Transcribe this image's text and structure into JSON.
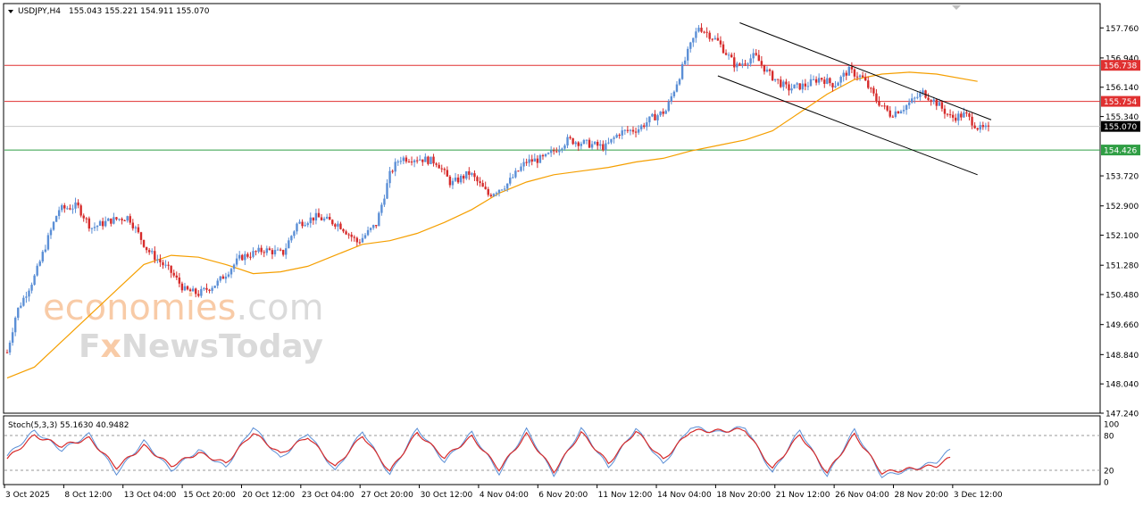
{
  "header": {
    "symbol": "USDJPY,H4",
    "ohlc": "155.043 155.221 154.911 155.070"
  },
  "watermark": {
    "line1_a": "econo",
    "line1_b": "mies",
    "line1_c": ".com",
    "line2_a": "F",
    "line2_b": "x",
    "line2_c": "NewsToday"
  },
  "price_axis": {
    "ticks": [
      "157.760",
      "156.940",
      "156.140",
      "155.340",
      "153.720",
      "152.900",
      "152.100",
      "151.280",
      "150.480",
      "149.660",
      "148.840",
      "148.040",
      "147.240"
    ]
  },
  "levels": [
    {
      "label": "156.738",
      "value": 156.738,
      "color": "#e03131"
    },
    {
      "label": "155.754",
      "value": 155.754,
      "color": "#e03131"
    },
    {
      "label": "155.070",
      "value": 155.07,
      "color": "#000000"
    },
    {
      "label": "154.426",
      "value": 154.426,
      "color": "#2f9e44"
    }
  ],
  "time_axis": {
    "labels": [
      "3 Oct 2025",
      "8 Oct 12:00",
      "13 Oct 04:00",
      "15 Oct 20:00",
      "20 Oct 12:00",
      "23 Oct 04:00",
      "27 Oct 20:00",
      "30 Oct 12:00",
      "4 Nov 04:00",
      "6 Nov 20:00",
      "11 Nov 12:00",
      "14 Nov 04:00",
      "18 Nov 20:00",
      "21 Nov 12:00",
      "26 Nov 04:00",
      "28 Nov 20:00",
      "3 Dec 12:00"
    ]
  },
  "stoch": {
    "title": "Stoch(5,3,3) 55.1630 40.9482",
    "ticks": [
      "100",
      "80",
      "20",
      "0"
    ]
  },
  "colors": {
    "bull": "#5b8fd6",
    "bear": "#d62b2b",
    "ma": "#f59f00",
    "stoch_main": "#5b8fd6",
    "stoch_signal": "#d62b2b"
  },
  "chart_data": {
    "type": "candlestick",
    "symbol": "USDJPY",
    "timeframe": "H4",
    "ylim": [
      147.24,
      158.4
    ],
    "ma_series": [
      [
        0,
        148.2
      ],
      [
        10,
        148.5
      ],
      [
        20,
        149.2
      ],
      [
        30,
        149.9
      ],
      [
        40,
        150.6
      ],
      [
        50,
        151.3
      ],
      [
        60,
        151.55
      ],
      [
        70,
        151.5
      ],
      [
        80,
        151.3
      ],
      [
        90,
        151.05
      ],
      [
        100,
        151.1
      ],
      [
        110,
        151.25
      ],
      [
        120,
        151.55
      ],
      [
        130,
        151.85
      ],
      [
        140,
        151.95
      ],
      [
        150,
        152.15
      ],
      [
        160,
        152.45
      ],
      [
        170,
        152.8
      ],
      [
        180,
        153.25
      ],
      [
        190,
        153.55
      ],
      [
        200,
        153.75
      ],
      [
        210,
        153.85
      ],
      [
        220,
        153.95
      ],
      [
        230,
        154.1
      ],
      [
        240,
        154.2
      ],
      [
        250,
        154.4
      ],
      [
        260,
        154.55
      ],
      [
        270,
        154.7
      ],
      [
        280,
        154.95
      ],
      [
        290,
        155.45
      ],
      [
        300,
        155.95
      ],
      [
        310,
        156.35
      ],
      [
        320,
        156.5
      ],
      [
        330,
        156.55
      ],
      [
        340,
        156.5
      ],
      [
        355,
        156.3
      ]
    ],
    "channel": {
      "upper": [
        [
          268,
          157.9
        ],
        [
          360,
          155.25
        ]
      ],
      "lower": [
        [
          260,
          156.45
        ],
        [
          355,
          153.75
        ]
      ]
    },
    "stoch_main": [
      [
        0,
        45
      ],
      [
        10,
        88
      ],
      [
        20,
        55
      ],
      [
        30,
        82
      ],
      [
        40,
        15
      ],
      [
        50,
        70
      ],
      [
        60,
        20
      ],
      [
        70,
        55
      ],
      [
        80,
        25
      ],
      [
        90,
        95
      ],
      [
        100,
        40
      ],
      [
        110,
        85
      ],
      [
        120,
        18
      ],
      [
        130,
        88
      ],
      [
        140,
        12
      ],
      [
        150,
        92
      ],
      [
        160,
        35
      ],
      [
        170,
        85
      ],
      [
        180,
        15
      ],
      [
        190,
        90
      ],
      [
        200,
        12
      ],
      [
        210,
        92
      ],
      [
        220,
        25
      ],
      [
        230,
        93
      ],
      [
        240,
        30
      ],
      [
        250,
        95
      ],
      [
        260,
        85
      ],
      [
        270,
        95
      ],
      [
        280,
        15
      ],
      [
        290,
        90
      ],
      [
        300,
        10
      ],
      [
        310,
        90
      ],
      [
        320,
        10
      ],
      [
        330,
        20
      ],
      [
        340,
        35
      ],
      [
        345,
        55
      ]
    ],
    "stoch_signal": [
      [
        0,
        40
      ],
      [
        10,
        80
      ],
      [
        20,
        62
      ],
      [
        30,
        75
      ],
      [
        40,
        25
      ],
      [
        50,
        62
      ],
      [
        60,
        28
      ],
      [
        70,
        50
      ],
      [
        80,
        32
      ],
      [
        90,
        85
      ],
      [
        100,
        48
      ],
      [
        110,
        78
      ],
      [
        120,
        25
      ],
      [
        130,
        80
      ],
      [
        140,
        18
      ],
      [
        150,
        85
      ],
      [
        160,
        42
      ],
      [
        170,
        78
      ],
      [
        180,
        22
      ],
      [
        190,
        82
      ],
      [
        200,
        18
      ],
      [
        210,
        85
      ],
      [
        220,
        32
      ],
      [
        230,
        88
      ],
      [
        240,
        38
      ],
      [
        250,
        88
      ],
      [
        260,
        88
      ],
      [
        270,
        90
      ],
      [
        280,
        22
      ],
      [
        290,
        82
      ],
      [
        300,
        16
      ],
      [
        310,
        82
      ],
      [
        320,
        16
      ],
      [
        330,
        22
      ],
      [
        340,
        28
      ],
      [
        345,
        41
      ]
    ]
  }
}
